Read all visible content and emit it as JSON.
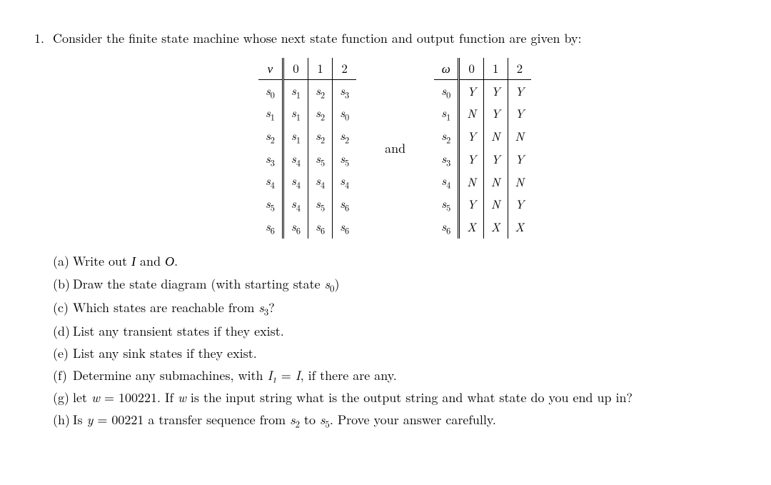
{
  "problem": {
    "number": "1.",
    "stem": "Consider the finite state machine whose next state function and output function are given by:"
  },
  "tables": {
    "nu": {
      "corner": "ν",
      "cols": [
        "0",
        "1",
        "2"
      ],
      "rows": [
        {
          "state": "s0",
          "cells": [
            "s1",
            "s2",
            "s3"
          ]
        },
        {
          "state": "s1",
          "cells": [
            "s1",
            "s2",
            "s0"
          ]
        },
        {
          "state": "s2",
          "cells": [
            "s1",
            "s2",
            "s2"
          ]
        },
        {
          "state": "s3",
          "cells": [
            "s4",
            "s5",
            "s5"
          ]
        },
        {
          "state": "s4",
          "cells": [
            "s4",
            "s4",
            "s4"
          ]
        },
        {
          "state": "s5",
          "cells": [
            "s4",
            "s5",
            "s6"
          ]
        },
        {
          "state": "s6",
          "cells": [
            "s6",
            "s6",
            "s6"
          ]
        }
      ]
    },
    "and": "and",
    "omega": {
      "corner": "ω",
      "cols": [
        "0",
        "1",
        "2"
      ],
      "rows": [
        {
          "state": "s0",
          "cells": [
            "Y",
            "Y",
            "Y"
          ]
        },
        {
          "state": "s1",
          "cells": [
            "N",
            "Y",
            "Y"
          ]
        },
        {
          "state": "s2",
          "cells": [
            "Y",
            "N",
            "N"
          ]
        },
        {
          "state": "s3",
          "cells": [
            "Y",
            "Y",
            "Y"
          ]
        },
        {
          "state": "s4",
          "cells": [
            "N",
            "N",
            "N"
          ]
        },
        {
          "state": "s5",
          "cells": [
            "Y",
            "N",
            "Y"
          ]
        },
        {
          "state": "s6",
          "cells": [
            "X",
            "X",
            "X"
          ]
        }
      ]
    }
  },
  "subparts": {
    "a": {
      "label": "(a)",
      "text_pre": "Write out ",
      "sym1": "I",
      "text_mid": " and ",
      "sym2": "O",
      "text_post": "."
    },
    "b": {
      "label": "(b)",
      "text_pre": "Draw the state diagram (with starting state ",
      "state": "s0",
      "text_post": ")"
    },
    "c": {
      "label": "(c)",
      "text_pre": "Which states are reachable from ",
      "state": "s3",
      "text_post": "?"
    },
    "d": {
      "label": "(d)",
      "text": "List any transient states if they exist."
    },
    "e": {
      "label": "(e)",
      "text": "List any sink states if they exist."
    },
    "f": {
      "label": "(f)",
      "text_pre": "Determine any submachines, with ",
      "eq_lhs": "I₁",
      "eq": " = ",
      "eq_rhs": "I",
      "text_post": ", if there are any."
    },
    "g": {
      "label": "(g)",
      "text_pre": "let ",
      "var": "w",
      "eq": " = 100221. If ",
      "var2": "w",
      "text_post": " is the input string what is the output string and what state do you end up in?"
    },
    "h": {
      "label": "(h)",
      "text_pre": "Is ",
      "var": "y",
      "eq": " = 00221 a transfer sequence from ",
      "s1": "s2",
      "mid": " to ",
      "s2": "s5",
      "text_post": ". Prove your answer carefully."
    }
  },
  "style": {
    "body_bg": "#ffffff",
    "text_color": "#000000",
    "font_size": 18,
    "border_color": "#000000",
    "font_family": "Computer Modern / serif"
  }
}
